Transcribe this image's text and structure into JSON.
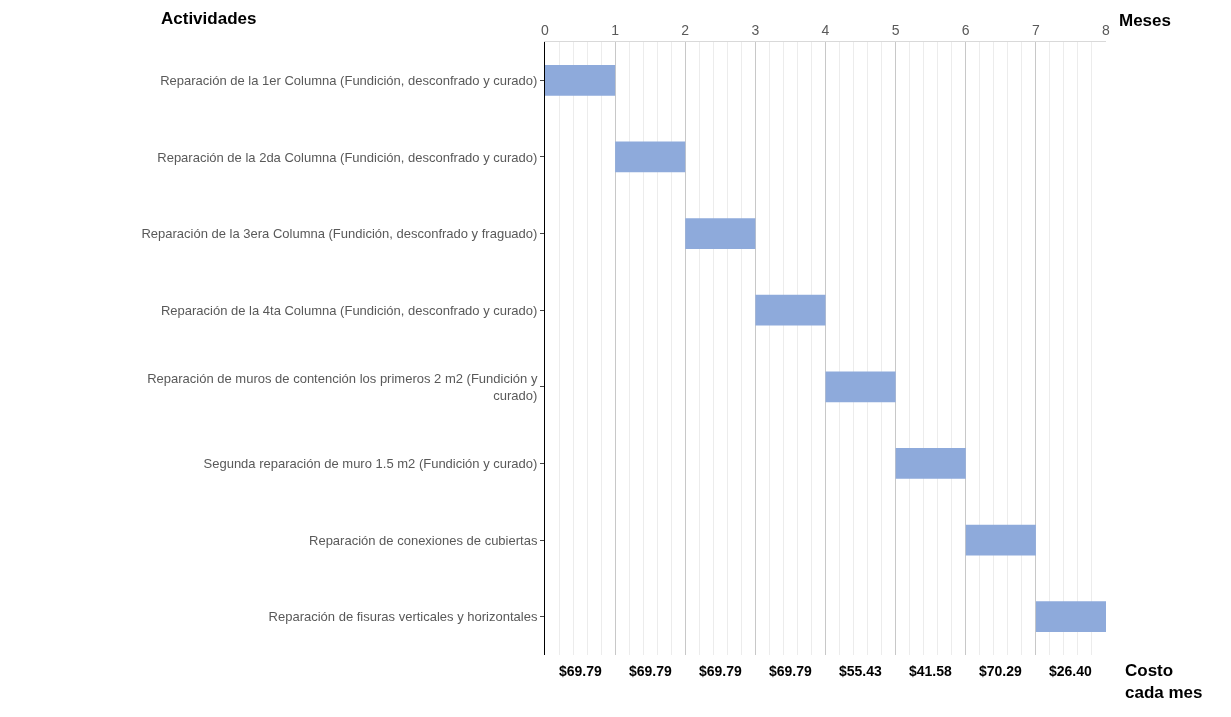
{
  "chart_data": {
    "type": "bar",
    "orientation": "horizontal",
    "xlabel": "Meses",
    "ylabel": "Actividades",
    "x2label": "Costo cada mes",
    "categories": [
      "Reparación de la 1er Columna (Fundición, desconfrado y curado)",
      "Reparación de la 2da Columna (Fundición, desconfrado y curado)",
      "Reparación de la 3era Columna (Fundición, desconfrado y fraguado)",
      "Reparación de la 4ta Columna (Fundición, desconfrado y curado)",
      "Reparación de muros de contención los primeros 2 m2 (Fundición y curado)",
      "Segunda reparación de muro 1.5 m2 (Fundición y curado)",
      "Reparación de conexiones de cubiertas",
      "Reparación de fisuras verticales y horizontales"
    ],
    "base": [
      0,
      1,
      2,
      3,
      4,
      5,
      6,
      7
    ],
    "values": [
      1,
      1,
      1,
      1,
      1,
      1,
      1,
      1
    ],
    "color": "#8eaadb",
    "xlim": [
      0,
      8
    ],
    "xticks": [
      0,
      1,
      2,
      3,
      4,
      5,
      6,
      7,
      8
    ],
    "annotations": [
      "$69.79",
      "$69.79",
      "$69.79",
      "$69.79",
      "$55.43",
      "$41.58",
      "$70.29",
      "$26.40"
    ],
    "grid": "x"
  }
}
